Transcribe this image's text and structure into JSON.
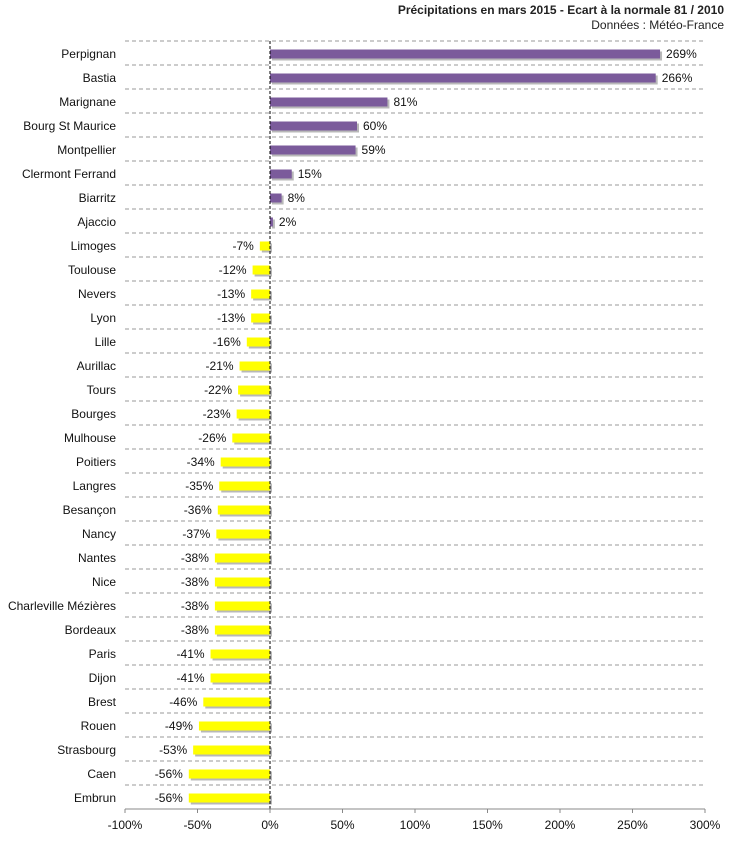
{
  "chart_data": {
    "type": "bar",
    "orientation": "horizontal",
    "title": "Précipitations en mars 2015 - Ecart à la normale 81 / 2010",
    "subtitle": "Données : Météo-France",
    "categories": [
      "Perpignan",
      "Bastia",
      "Marignane",
      "Bourg St Maurice",
      "Montpellier",
      "Clermont Ferrand",
      "Biarritz",
      "Ajaccio",
      "Limoges",
      "Toulouse",
      "Nevers",
      "Lyon",
      "Lille",
      "Aurillac",
      "Tours",
      "Bourges",
      "Mulhouse",
      "Poitiers",
      "Langres",
      "Besançon",
      "Nancy",
      "Nantes",
      "Nice",
      "Charleville Mézières",
      "Bordeaux",
      "Paris",
      "Dijon",
      "Brest",
      "Rouen",
      "Strasbourg",
      "Caen",
      "Embrun"
    ],
    "values": [
      269,
      266,
      81,
      60,
      59,
      15,
      8,
      2,
      -7,
      -12,
      -13,
      -13,
      -16,
      -21,
      -22,
      -23,
      -26,
      -34,
      -35,
      -36,
      -37,
      -38,
      -38,
      -38,
      -38,
      -41,
      -41,
      -46,
      -49,
      -53,
      -56,
      -56
    ],
    "value_labels": [
      "269%",
      "266%",
      "81%",
      "60%",
      "59%",
      "15%",
      "8%",
      "2%",
      "-7%",
      "-12%",
      "-13%",
      "-13%",
      "-16%",
      "-21%",
      "-22%",
      "-23%",
      "-26%",
      "-34%",
      "-35%",
      "-36%",
      "-37%",
      "-38%",
      "-38%",
      "-38%",
      "-38%",
      "-41%",
      "-41%",
      "-46%",
      "-49%",
      "-53%",
      "-56%",
      "-56%"
    ],
    "xlim": [
      -100,
      300
    ],
    "xticks": [
      -100,
      -50,
      0,
      50,
      100,
      150,
      200,
      250,
      300
    ],
    "xtick_labels": [
      "-100%",
      "-50%",
      "0%",
      "50%",
      "100%",
      "150%",
      "200%",
      "250%",
      "300%"
    ],
    "gridlines": "horizontal dashed",
    "colors": {
      "positive": "#7b5b9b",
      "negative": "#ffff00",
      "shadow": "#b8b8b8",
      "grid": "#9a9a9a",
      "zero_line": "#000000"
    }
  }
}
